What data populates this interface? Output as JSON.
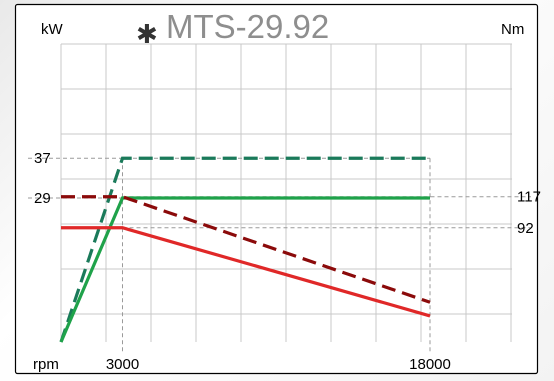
{
  "chart_data": {
    "type": "line",
    "title": "MTS-29.92",
    "title_icon": "asterisk-icon",
    "left_unit": "kW",
    "right_unit": "Nm",
    "x_label": "rpm",
    "x_range": [
      0,
      22000
    ],
    "left_range": [
      0,
      60
    ],
    "right_range": [
      0,
      240
    ],
    "grid": true,
    "x_ticks": [
      {
        "value": 3000,
        "label": "3000"
      },
      {
        "value": 18000,
        "label": "18000"
      }
    ],
    "left_ticks": [
      {
        "value": 37,
        "label": "37"
      },
      {
        "value": 29,
        "label": "29"
      }
    ],
    "right_ticks": [
      {
        "value": 117,
        "label": "117"
      },
      {
        "value": 92,
        "label": "92"
      }
    ],
    "series": [
      {
        "axis": "left",
        "color": "#1a7a5a",
        "style": "dashed",
        "x": [
          0,
          3000,
          18000
        ],
        "y": [
          0,
          37,
          37
        ]
      },
      {
        "axis": "left",
        "color": "#1fa24a",
        "style": "solid",
        "x": [
          0,
          3000,
          18000
        ],
        "y": [
          0,
          29,
          29
        ]
      },
      {
        "axis": "right",
        "color": "#8b0a0a",
        "style": "dashed",
        "x": [
          0,
          3000,
          18000
        ],
        "y": [
          117,
          117,
          32
        ]
      },
      {
        "axis": "right",
        "color": "#e02828",
        "style": "solid",
        "x": [
          0,
          3000,
          18000
        ],
        "y": [
          92,
          92,
          21
        ]
      }
    ]
  }
}
